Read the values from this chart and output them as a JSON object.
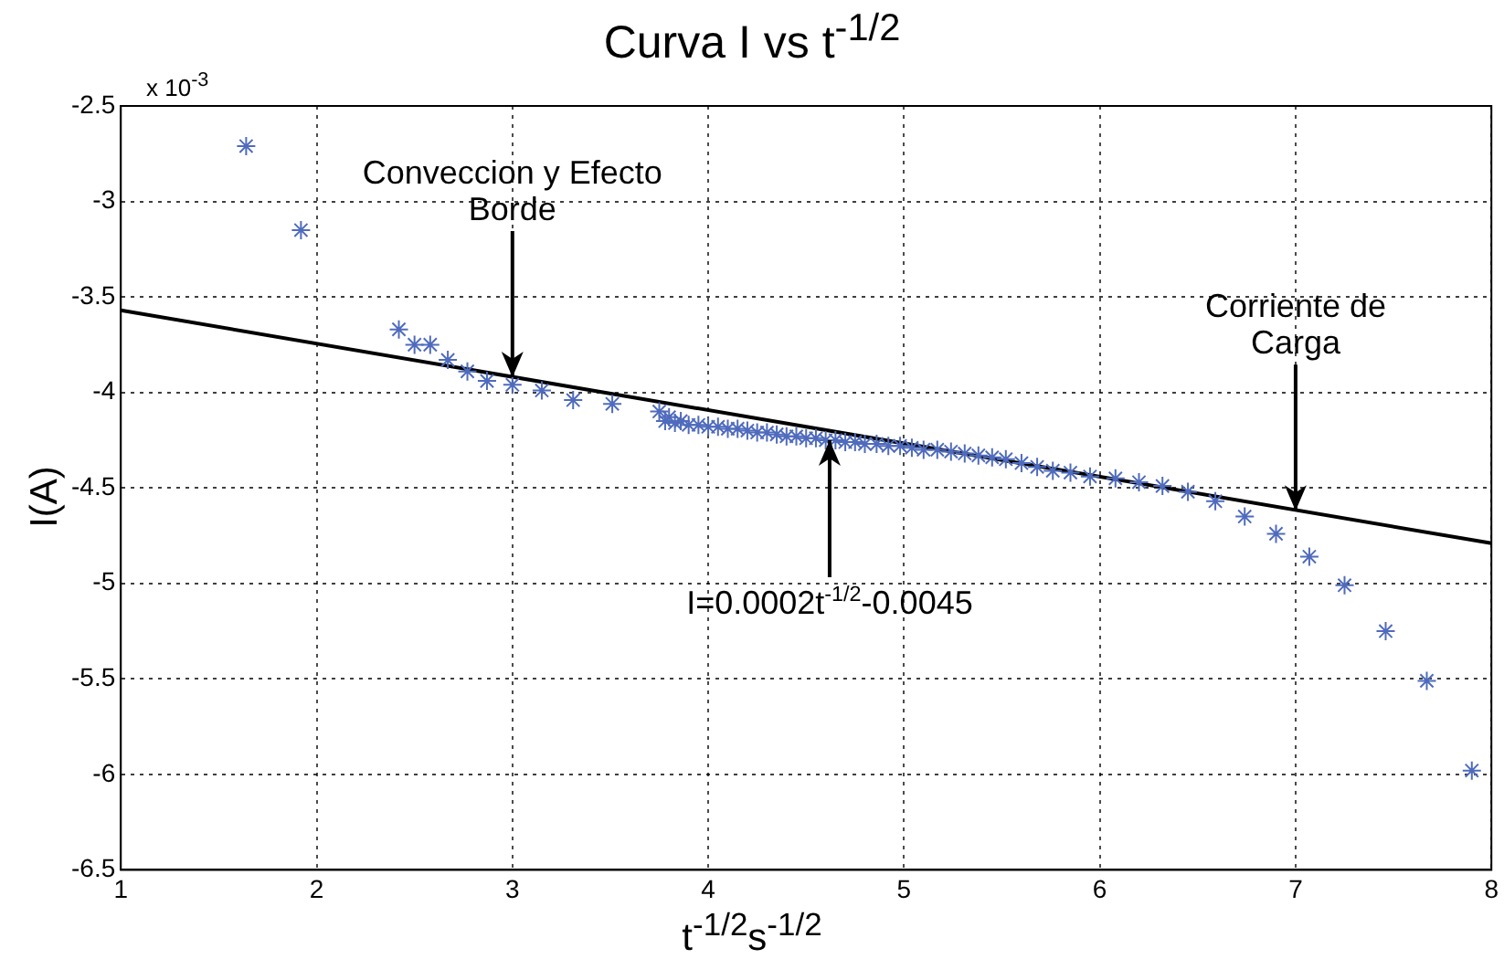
{
  "chart_data": {
    "type": "scatter",
    "title": "Curva I vs t$^{-1/2}$",
    "xlabel": "t$^{-1/2}$s$^{-1/2}$",
    "ylabel": "I(A)",
    "xlim": [
      1,
      8
    ],
    "xticks": [
      1,
      2,
      3,
      4,
      5,
      6,
      7,
      8
    ],
    "ylim": [
      -6.5,
      -2.5
    ],
    "yticks": [
      -6.5,
      -6,
      -5.5,
      -5,
      -4.5,
      -4,
      -3.5,
      -3,
      -2.5
    ],
    "grid": true,
    "legend": false,
    "annotations": [
      "x 10$^{-3}$",
      {
        "text": "Conveccion y Efecto Borde",
        "x": 3.0,
        "y": -3.92
      },
      {
        "text": "I=0.0002t$^{-1/2}$-0.0045",
        "x": 4.62,
        "y": -4.25
      },
      {
        "text": "Corriente de Carga",
        "x": 7.0,
        "y": -4.62
      }
    ],
    "series": [
      {
        "type": "scatter",
        "color": "#4f6bbd",
        "marker": "cross",
        "x": [
          1.64,
          1.92,
          2.42,
          2.5,
          2.58,
          2.67,
          2.77,
          2.87,
          3.0,
          3.15,
          3.31,
          3.51,
          3.75,
          3.78,
          3.8,
          3.83,
          3.86,
          3.9,
          3.95,
          4.0,
          4.05,
          4.1,
          4.15,
          4.2,
          4.25,
          4.3,
          4.35,
          4.4,
          4.45,
          4.5,
          4.55,
          4.6,
          4.65,
          4.7,
          4.75,
          4.8,
          4.86,
          4.92,
          4.98,
          5.04,
          5.1,
          5.17,
          5.24,
          5.31,
          5.38,
          5.45,
          5.52,
          5.6,
          5.68,
          5.76,
          5.85,
          5.95,
          6.08,
          6.2,
          6.32,
          6.45,
          6.59,
          6.74,
          6.9,
          7.07,
          7.25,
          7.46,
          7.67,
          7.9
        ],
        "values": [
          -2.71,
          -3.15,
          -3.67,
          -3.75,
          -3.75,
          -3.83,
          -3.89,
          -3.94,
          -3.96,
          -3.99,
          -4.04,
          -4.06,
          -4.1,
          -4.15,
          -4.13,
          -4.16,
          -4.15,
          -4.17,
          -4.17,
          -4.18,
          -4.18,
          -4.19,
          -4.19,
          -4.2,
          -4.21,
          -4.21,
          -4.22,
          -4.23,
          -4.23,
          -4.24,
          -4.24,
          -4.25,
          -4.25,
          -4.26,
          -4.26,
          -4.27,
          -4.27,
          -4.28,
          -4.28,
          -4.29,
          -4.3,
          -4.3,
          -4.31,
          -4.32,
          -4.33,
          -4.34,
          -4.35,
          -4.37,
          -4.39,
          -4.41,
          -4.42,
          -4.44,
          -4.45,
          -4.47,
          -4.49,
          -4.52,
          -4.57,
          -4.65,
          -4.74,
          -4.86,
          -5.01,
          -5.25,
          -5.51,
          -5.98
        ]
      },
      {
        "type": "line",
        "color": "#000000",
        "marker": "none",
        "x": [
          1,
          8
        ],
        "values": [
          -3.57,
          -4.79
        ]
      }
    ]
  }
}
